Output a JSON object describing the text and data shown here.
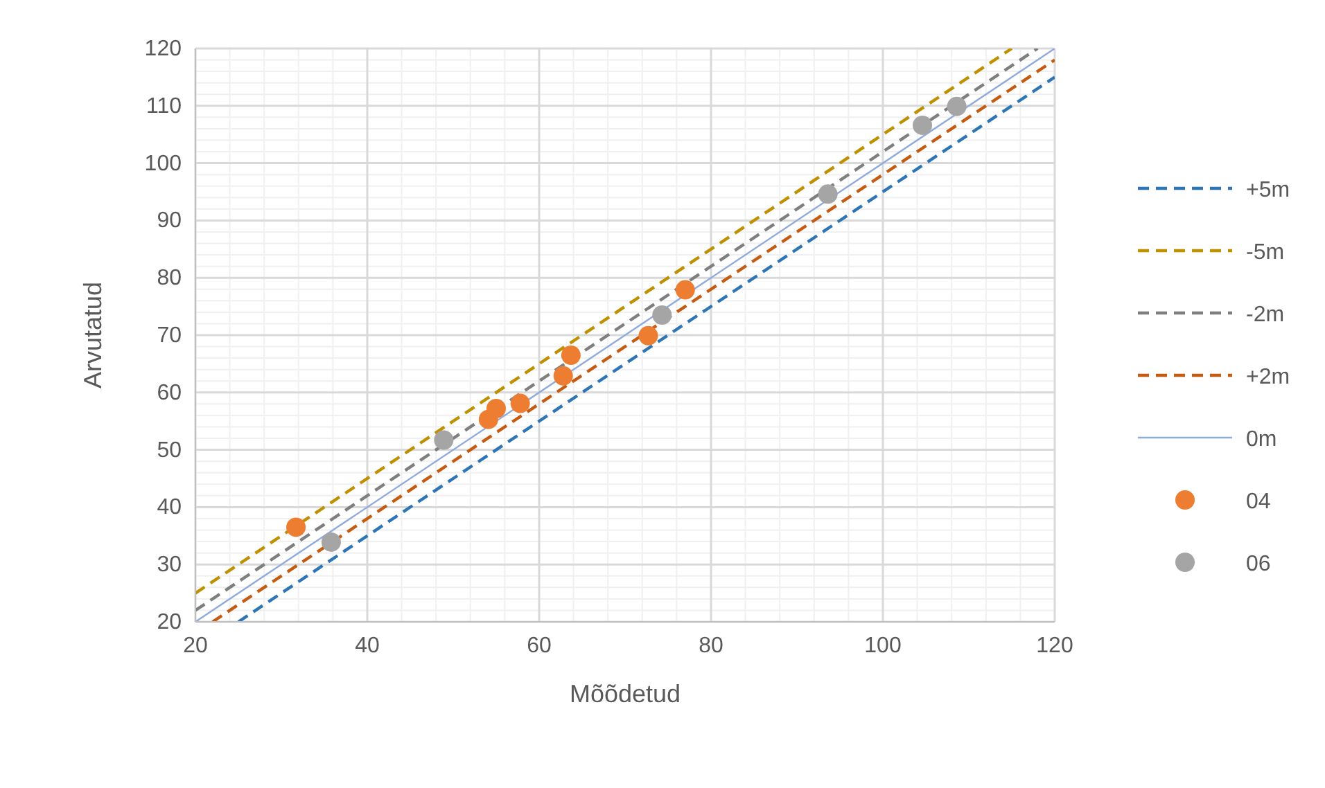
{
  "chart_data": {
    "type": "scatter",
    "xlabel": "Mõõdetud",
    "ylabel": "Arvutatud",
    "xlim": [
      20,
      120
    ],
    "ylim": [
      20,
      120
    ],
    "xticks": [
      20,
      40,
      60,
      80,
      100,
      120
    ],
    "yticks": [
      20,
      30,
      40,
      50,
      60,
      70,
      80,
      90,
      100,
      110,
      120
    ],
    "grid": true,
    "legend": "right",
    "series": [
      {
        "name": "+5m",
        "type": "line",
        "line_style": "dashed",
        "color": "#2e75b6",
        "x": [
          25,
          120
        ],
        "values": [
          20,
          115
        ]
      },
      {
        "name": "-5m",
        "type": "line",
        "line_style": "dashed",
        "color": "#bf9000",
        "x": [
          20,
          115
        ],
        "values": [
          25,
          120
        ]
      },
      {
        "name": "-2m",
        "type": "line",
        "line_style": "dashed",
        "color": "#7f7f7f",
        "x": [
          20,
          118
        ],
        "values": [
          22,
          120
        ]
      },
      {
        "name": "+2m",
        "type": "line",
        "line_style": "dashed",
        "color": "#c55a11",
        "x": [
          22,
          120
        ],
        "values": [
          20,
          118
        ]
      },
      {
        "name": "0m",
        "type": "line",
        "line_style": "solid",
        "color": "#8faadc",
        "x": [
          20,
          120
        ],
        "values": [
          20,
          120
        ]
      },
      {
        "name": "04",
        "marker": "circle",
        "color": "#ed7d31",
        "x": [
          31.7,
          54.1,
          55.0,
          57.8,
          62.8,
          63.7,
          72.7,
          77.0
        ],
        "values": [
          36.5,
          55.3,
          57.2,
          58.1,
          62.9,
          66.5,
          69.9,
          77.9
        ]
      },
      {
        "name": "06",
        "marker": "circle",
        "color": "#a5a5a5",
        "x": [
          35.8,
          48.9,
          74.3,
          93.6,
          104.6,
          108.6
        ],
        "values": [
          33.9,
          51.7,
          73.5,
          94.6,
          106.6,
          109.9
        ]
      }
    ]
  }
}
